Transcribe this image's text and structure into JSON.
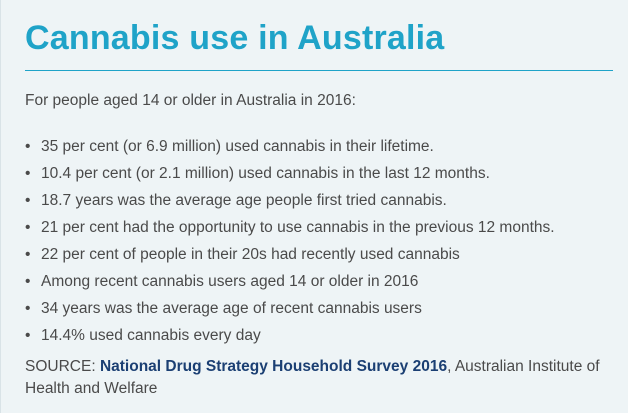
{
  "title": "Cannabis use in Australia",
  "intro": "For people aged 14 or older in Australia in 2016:",
  "bullet_glyph": "•",
  "facts": [
    "35 per cent (or 6.9 million) used cannabis in their lifetime.",
    "10.4 per cent (or 2.1 million) used cannabis in the last 12 months.",
    "18.7 years was the average age people first tried cannabis.",
    "21 per cent had the opportunity to use cannabis in the previous 12 months.",
    "22 per cent of people in their 20s had recently used cannabis",
    "Among recent cannabis users aged 14 or older in 2016",
    "34 years was the average age of recent cannabis users",
    "14.4% used cannabis every day"
  ],
  "source": {
    "label": "SOURCE:",
    "link_text": "National Drug Strategy Household Survey 2016",
    "rest": ", Australian Institute of Health and Welfare"
  },
  "colors": {
    "title": "#1fa3c8",
    "link": "#1b3f73",
    "text": "#4a4a4a",
    "background": "#eef4f6"
  }
}
